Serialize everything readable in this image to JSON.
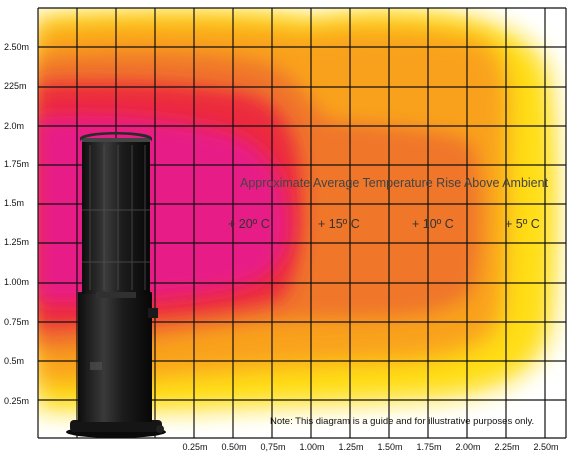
{
  "diagram": {
    "title": "Approximate Average Temperature Rise Above Ambient",
    "note": "Note: This diagram is a guide and for illustrative purposes only.",
    "y_axis_labels": [
      "2.50m",
      "225m",
      "2.0m",
      "1.75m",
      "1.5m",
      "1.25m",
      "1.00m",
      "0.75m",
      "0.5m",
      "0.25m"
    ],
    "x_axis_labels": [
      "0.25m",
      "0.50m",
      "0,75m",
      "1.00m",
      "1.25m",
      "1.50m",
      "1.75m",
      "2.00m",
      "2.25m",
      "2.50m"
    ],
    "zones": [
      {
        "label": "+ 20º C",
        "color": "#ec1f8a"
      },
      {
        "label": "+ 15º C",
        "color": "#f0782a"
      },
      {
        "label": "+ 10º C",
        "color": "#f8a020"
      },
      {
        "label": "+ 5º C",
        "color": "#ffdd00"
      }
    ],
    "object": "patio-heater"
  }
}
